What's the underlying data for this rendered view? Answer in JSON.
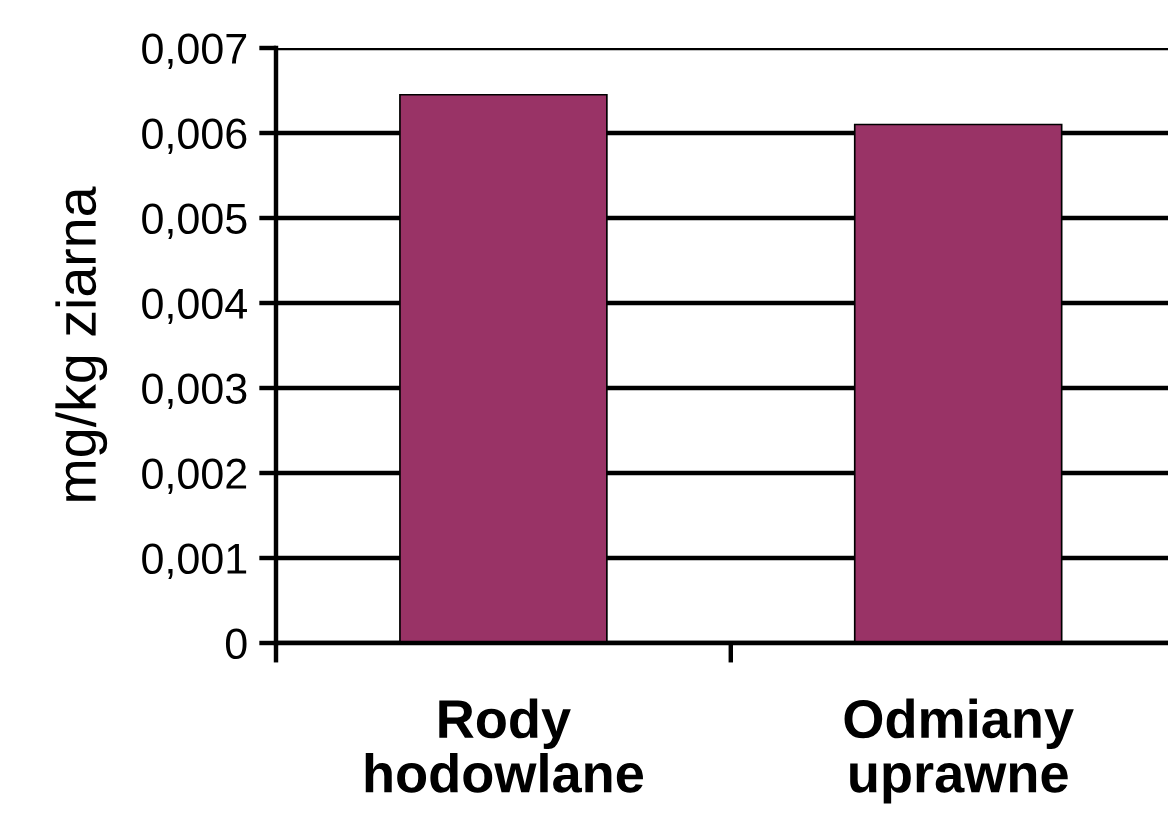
{
  "chart_data": {
    "type": "bar",
    "ylabel": "mg/kg ziarna",
    "categories": [
      "Rody\nhodowlane",
      "Odmiany\nuprawne"
    ],
    "values": [
      0.00645,
      0.0061
    ],
    "color": "#993366",
    "ylim": [
      0,
      0.007
    ],
    "yticks": [
      0,
      {
        "value": 0.001,
        "label": "0,001"
      },
      {
        "value": 0.002,
        "label": "0,002"
      },
      {
        "value": 0.003,
        "label": "0,003"
      },
      {
        "value": 0.004,
        "label": "0,004"
      },
      {
        "value": 0.005,
        "label": "0,005"
      },
      {
        "value": 0.006,
        "label": "0,006"
      },
      {
        "value": 0.007,
        "label": "0,007"
      }
    ],
    "grid": "y"
  }
}
